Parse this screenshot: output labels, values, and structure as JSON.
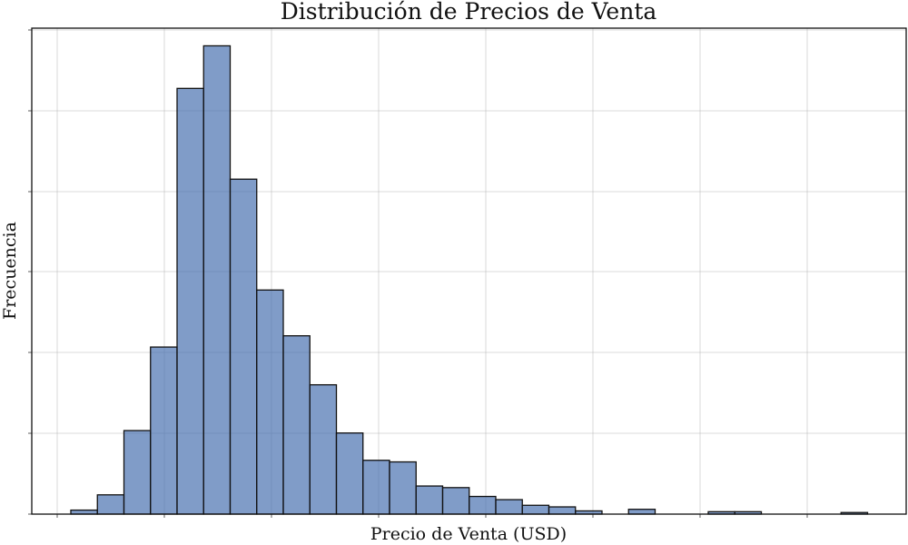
{
  "chart_data": {
    "type": "bar",
    "title": "Distribución de Precios de Venta",
    "xlabel": "Precio de Venta (USD)",
    "ylabel": "Frecuencia",
    "grid": true,
    "x_tick_labels_shown": false,
    "y_tick_labels_shown": false,
    "bin_count": 30,
    "values": [
      5,
      24,
      104,
      208,
      530,
      583,
      417,
      279,
      222,
      161,
      101,
      67,
      65,
      35,
      33,
      22,
      18,
      11,
      9,
      4,
      0,
      6,
      0,
      0,
      3,
      3,
      0,
      0,
      0,
      2
    ],
    "ylim": [
      0,
      605
    ]
  }
}
